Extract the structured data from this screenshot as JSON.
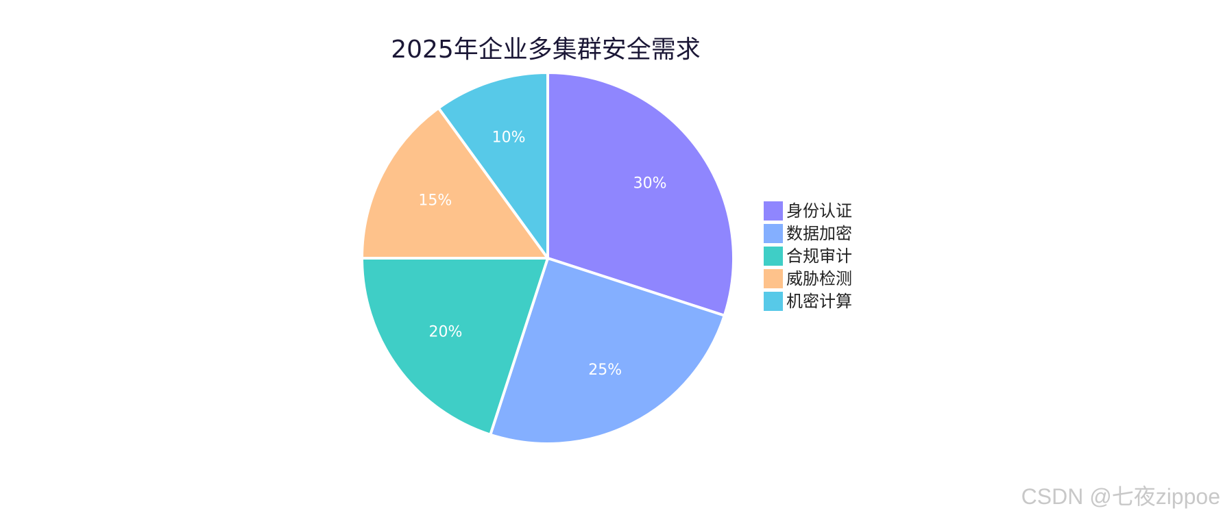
{
  "chart_data": {
    "type": "pie",
    "title": "2025年企业多集群安全需求",
    "categories": [
      "身份认证",
      "数据加密",
      "合规审计",
      "威胁检测",
      "机密计算"
    ],
    "values": [
      30,
      25,
      20,
      15,
      10
    ],
    "labels": [
      "30%",
      "25%",
      "20%",
      "15%",
      "10%"
    ],
    "colors": [
      "#8f86fe",
      "#84afff",
      "#3fcec6",
      "#fec28b",
      "#57c9e8"
    ],
    "start_angle_deg": 0,
    "direction": "clockwise",
    "legend_placement": "right"
  },
  "watermark": "CSDN @七夜zippoe"
}
